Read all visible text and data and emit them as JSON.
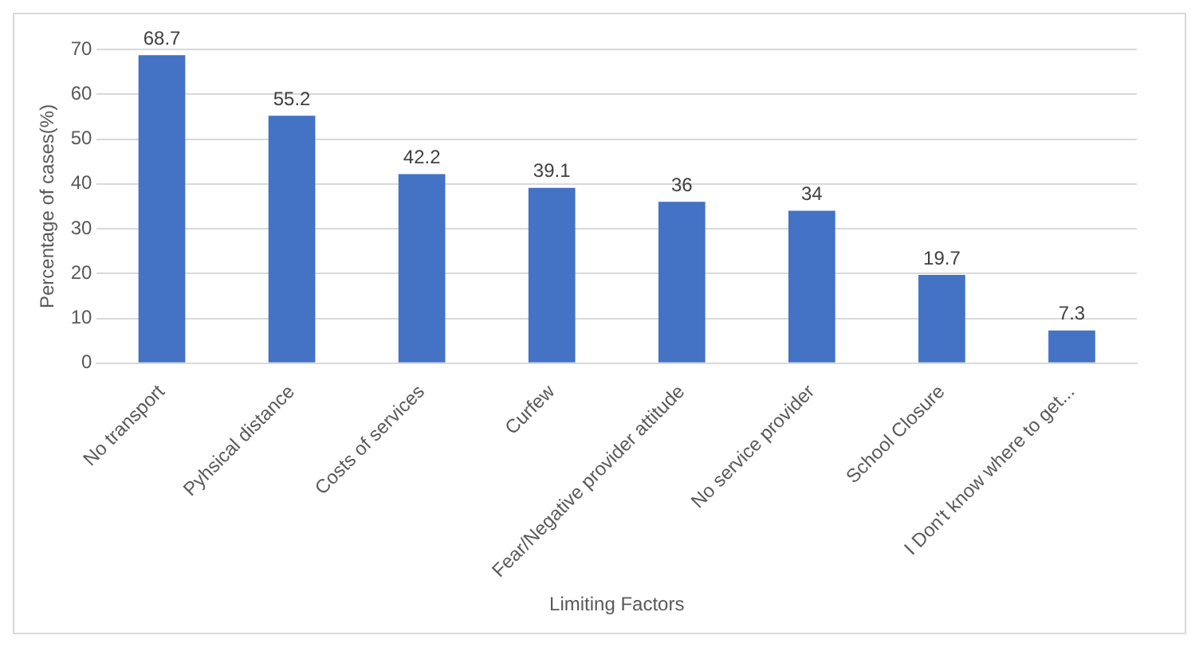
{
  "chart_data": {
    "type": "bar",
    "xlabel": "Limiting Factors",
    "ylabel": "Percentage of cases(%)",
    "categories": [
      "No transport",
      "Pyhsical distance",
      "Costs of services",
      "Curfew",
      "Fear/Negative provider attitude",
      "No service provider",
      "School Closure",
      "I Don't know where to get..."
    ],
    "values": [
      68.7,
      55.2,
      42.2,
      39.1,
      36,
      34,
      19.7,
      7.3
    ],
    "color": "#4472c4",
    "ylim": [
      0,
      70
    ],
    "yticks": [
      0,
      10,
      20,
      30,
      40,
      50,
      60,
      70
    ],
    "grid": "y",
    "data_labels": true,
    "legend": false
  }
}
